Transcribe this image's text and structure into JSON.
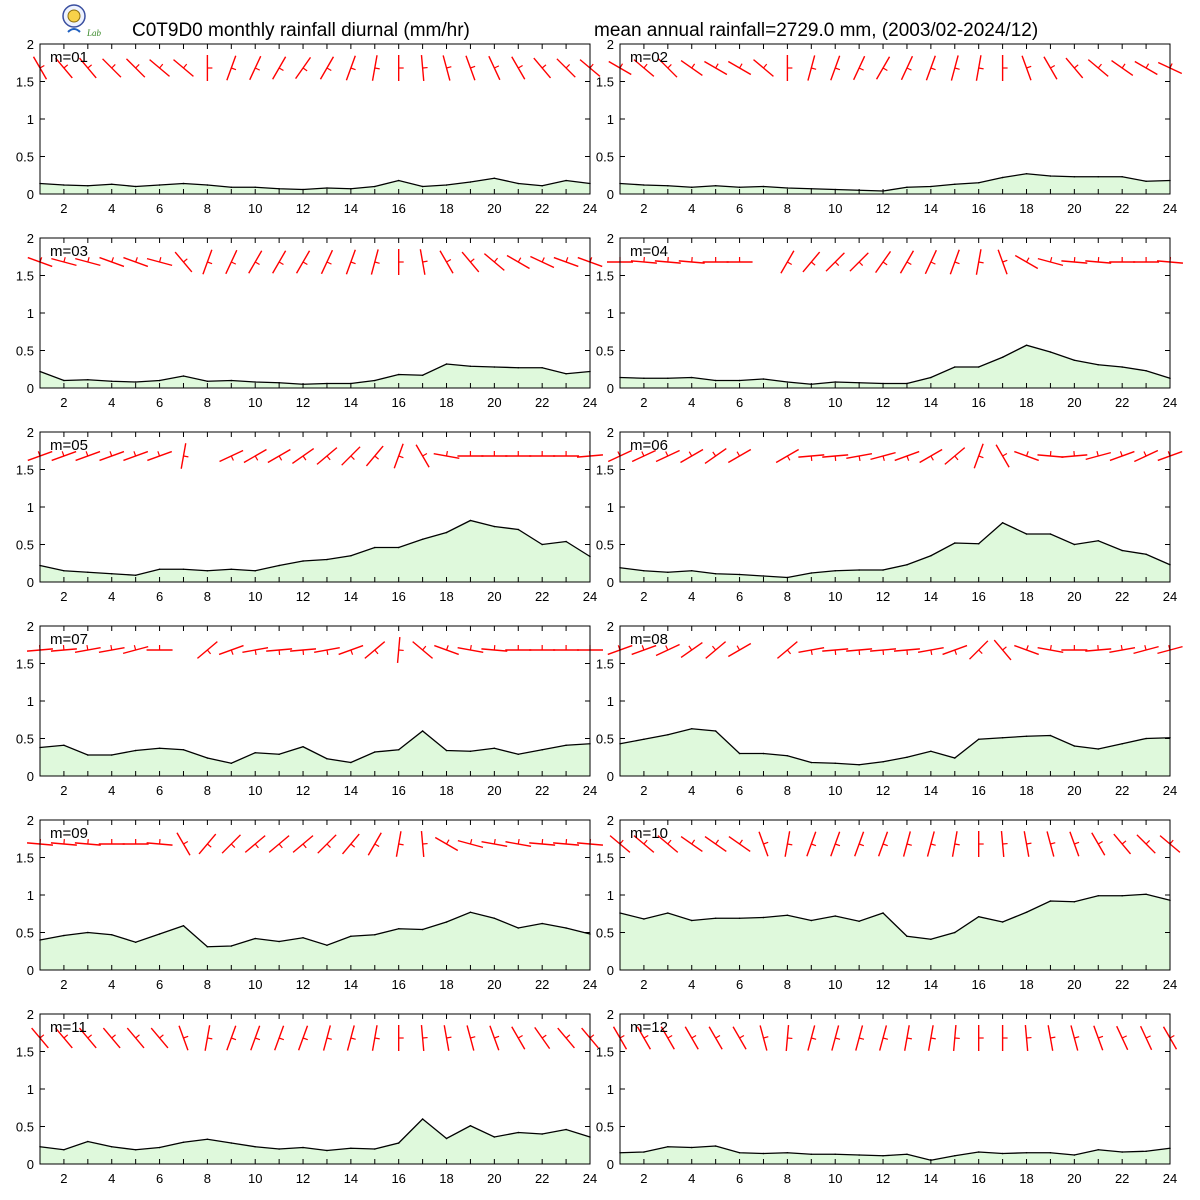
{
  "header": {
    "title_left": "C0T9D0 monthly rainfall diurnal (mm/hr)",
    "title_right": "mean annual rainfall=2729.0 mm, (2003/02-2024/12)",
    "logo_text": "Lab"
  },
  "colors": {
    "fill": "#dff9dc",
    "line": "#000000",
    "wind": "#ff0000",
    "frame": "#000000"
  },
  "chart_data": [
    {
      "type": "area",
      "label": "m=01",
      "x": [
        1,
        2,
        3,
        4,
        5,
        6,
        7,
        8,
        9,
        10,
        11,
        12,
        13,
        14,
        15,
        16,
        17,
        18,
        19,
        20,
        21,
        22,
        23,
        24
      ],
      "values": [
        0.14,
        0.12,
        0.11,
        0.13,
        0.1,
        0.12,
        0.14,
        0.12,
        0.09,
        0.09,
        0.07,
        0.06,
        0.08,
        0.07,
        0.1,
        0.18,
        0.1,
        0.12,
        0.16,
        0.21,
        0.14,
        0.11,
        0.18,
        0.14
      ],
      "wind_dir_deg": [
        330,
        320,
        320,
        315,
        315,
        310,
        310,
        0,
        20,
        25,
        30,
        35,
        30,
        20,
        10,
        0,
        355,
        345,
        340,
        335,
        330,
        320,
        315,
        310
      ],
      "xlim": [
        1,
        24
      ],
      "ylim": [
        0,
        2
      ],
      "xticks": [
        2,
        4,
        6,
        8,
        10,
        12,
        14,
        16,
        18,
        20,
        22,
        24
      ],
      "yticks": [
        "0",
        "0.5",
        "1",
        "1.5",
        "2"
      ]
    },
    {
      "type": "area",
      "label": "m=02",
      "x": [
        1,
        2,
        3,
        4,
        5,
        6,
        7,
        8,
        9,
        10,
        11,
        12,
        13,
        14,
        15,
        16,
        17,
        18,
        19,
        20,
        21,
        22,
        23,
        24
      ],
      "values": [
        0.14,
        0.12,
        0.11,
        0.09,
        0.11,
        0.09,
        0.1,
        0.08,
        0.07,
        0.06,
        0.05,
        0.04,
        0.09,
        0.1,
        0.13,
        0.15,
        0.22,
        0.27,
        0.24,
        0.23,
        0.23,
        0.23,
        0.17,
        0.18
      ],
      "wind_dir_deg": [
        300,
        310,
        315,
        305,
        300,
        300,
        310,
        0,
        15,
        20,
        25,
        30,
        25,
        20,
        15,
        10,
        0,
        340,
        330,
        320,
        310,
        305,
        300,
        295
      ],
      "xlim": [
        1,
        24
      ],
      "ylim": [
        0,
        2
      ],
      "xticks": [
        2,
        4,
        6,
        8,
        10,
        12,
        14,
        16,
        18,
        20,
        22,
        24
      ],
      "yticks": [
        "0",
        "0.5",
        "1",
        "1.5",
        "2"
      ]
    },
    {
      "type": "area",
      "label": "m=03",
      "x": [
        1,
        2,
        3,
        4,
        5,
        6,
        7,
        8,
        9,
        10,
        11,
        12,
        13,
        14,
        15,
        16,
        17,
        18,
        19,
        20,
        21,
        22,
        23,
        24
      ],
      "values": [
        0.22,
        0.1,
        0.11,
        0.09,
        0.08,
        0.1,
        0.16,
        0.09,
        0.1,
        0.08,
        0.07,
        0.05,
        0.06,
        0.06,
        0.1,
        0.18,
        0.17,
        0.32,
        0.29,
        0.28,
        0.27,
        0.27,
        0.19,
        0.22
      ],
      "wind_dir_deg": [
        290,
        285,
        285,
        290,
        290,
        285,
        320,
        20,
        25,
        30,
        30,
        30,
        25,
        20,
        15,
        0,
        350,
        330,
        320,
        310,
        300,
        295,
        290,
        290
      ],
      "xlim": [
        1,
        24
      ],
      "ylim": [
        0,
        2
      ],
      "xticks": [
        2,
        4,
        6,
        8,
        10,
        12,
        14,
        16,
        18,
        20,
        22,
        24
      ],
      "yticks": [
        "0",
        "0.5",
        "1",
        "1.5",
        "2"
      ]
    },
    {
      "type": "area",
      "label": "m=04",
      "x": [
        1,
        2,
        3,
        4,
        5,
        6,
        7,
        8,
        9,
        10,
        11,
        12,
        13,
        14,
        15,
        16,
        17,
        18,
        19,
        20,
        21,
        22,
        23,
        24
      ],
      "values": [
        0.14,
        0.13,
        0.13,
        0.14,
        0.1,
        0.1,
        0.12,
        0.08,
        0.05,
        0.08,
        0.07,
        0.06,
        0.06,
        0.14,
        0.28,
        0.28,
        0.41,
        0.57,
        0.48,
        0.37,
        0.31,
        0.28,
        0.23,
        0.13
      ],
      "wind_dir_deg": [
        270,
        275,
        275,
        275,
        270,
        270,
        null,
        30,
        40,
        45,
        45,
        35,
        30,
        25,
        20,
        10,
        340,
        300,
        285,
        275,
        275,
        270,
        270,
        275
      ],
      "xlim": [
        1,
        24
      ],
      "ylim": [
        0,
        2
      ],
      "xticks": [
        2,
        4,
        6,
        8,
        10,
        12,
        14,
        16,
        18,
        20,
        22,
        24
      ],
      "yticks": [
        "0",
        "0.5",
        "1",
        "1.5",
        "2"
      ]
    },
    {
      "type": "area",
      "label": "m=05",
      "x": [
        1,
        2,
        3,
        4,
        5,
        6,
        7,
        8,
        9,
        10,
        11,
        12,
        13,
        14,
        15,
        16,
        17,
        18,
        19,
        20,
        21,
        22,
        23,
        24
      ],
      "values": [
        0.22,
        0.15,
        0.13,
        0.11,
        0.09,
        0.17,
        0.17,
        0.15,
        0.17,
        0.15,
        0.22,
        0.28,
        0.3,
        0.35,
        0.46,
        0.46,
        0.57,
        0.66,
        0.82,
        0.74,
        0.7,
        0.5,
        0.54,
        0.34
      ],
      "wind_dir_deg": [
        250,
        250,
        250,
        250,
        250,
        250,
        10,
        null,
        65,
        60,
        60,
        55,
        50,
        45,
        40,
        20,
        330,
        280,
        270,
        270,
        270,
        270,
        270,
        265
      ],
      "xlim": [
        1,
        24
      ],
      "ylim": [
        0,
        2
      ],
      "xticks": [
        2,
        4,
        6,
        8,
        10,
        12,
        14,
        16,
        18,
        20,
        22,
        24
      ],
      "yticks": [
        "0",
        "0.5",
        "1",
        "1.5",
        "2"
      ]
    },
    {
      "type": "area",
      "label": "m=06",
      "x": [
        1,
        2,
        3,
        4,
        5,
        6,
        7,
        8,
        9,
        10,
        11,
        12,
        13,
        14,
        15,
        16,
        17,
        18,
        19,
        20,
        21,
        22,
        23,
        24
      ],
      "values": [
        0.19,
        0.15,
        0.13,
        0.15,
        0.11,
        0.1,
        0.08,
        0.06,
        0.12,
        0.15,
        0.16,
        0.16,
        0.23,
        0.35,
        0.52,
        0.51,
        0.79,
        0.64,
        0.64,
        0.5,
        0.55,
        0.42,
        0.37,
        0.23
      ],
      "wind_dir_deg": [
        245,
        245,
        245,
        240,
        235,
        240,
        null,
        60,
        85,
        85,
        80,
        75,
        70,
        60,
        50,
        20,
        330,
        290,
        275,
        265,
        255,
        250,
        245,
        250
      ],
      "xlim": [
        1,
        24
      ],
      "ylim": [
        0,
        2
      ],
      "xticks": [
        2,
        4,
        6,
        8,
        10,
        12,
        14,
        16,
        18,
        20,
        22,
        24
      ],
      "yticks": [
        "0",
        "0.5",
        "1",
        "1.5",
        "2"
      ]
    },
    {
      "type": "area",
      "label": "m=07",
      "x": [
        1,
        2,
        3,
        4,
        5,
        6,
        7,
        8,
        9,
        10,
        11,
        12,
        13,
        14,
        15,
        16,
        17,
        18,
        19,
        20,
        21,
        22,
        23,
        24
      ],
      "values": [
        0.38,
        0.41,
        0.28,
        0.28,
        0.34,
        0.37,
        0.35,
        0.24,
        0.17,
        0.31,
        0.29,
        0.39,
        0.23,
        0.18,
        0.32,
        0.35,
        0.6,
        0.34,
        0.33,
        0.37,
        0.29,
        0.35,
        0.41,
        0.43
      ],
      "wind_dir_deg": [
        265,
        265,
        260,
        260,
        255,
        270,
        null,
        50,
        70,
        80,
        85,
        85,
        80,
        70,
        50,
        5,
        310,
        290,
        280,
        275,
        270,
        270,
        270,
        270
      ],
      "xlim": [
        1,
        24
      ],
      "ylim": [
        0,
        2
      ],
      "xticks": [
        2,
        4,
        6,
        8,
        10,
        12,
        14,
        16,
        18,
        20,
        22,
        24
      ],
      "yticks": [
        "0",
        "0.5",
        "1",
        "1.5",
        "2"
      ]
    },
    {
      "type": "area",
      "label": "m=08",
      "x": [
        1,
        2,
        3,
        4,
        5,
        6,
        7,
        8,
        9,
        10,
        11,
        12,
        13,
        14,
        15,
        16,
        17,
        18,
        19,
        20,
        21,
        22,
        23,
        24
      ],
      "values": [
        0.43,
        0.49,
        0.55,
        0.63,
        0.6,
        0.3,
        0.3,
        0.27,
        0.18,
        0.17,
        0.15,
        0.19,
        0.25,
        0.33,
        0.24,
        0.49,
        0.51,
        0.53,
        0.54,
        0.4,
        0.36,
        0.43,
        0.5,
        0.51
      ],
      "wind_dir_deg": [
        250,
        250,
        245,
        235,
        230,
        240,
        null,
        50,
        80,
        85,
        85,
        85,
        85,
        80,
        70,
        45,
        320,
        290,
        280,
        270,
        265,
        260,
        255,
        255
      ],
      "xlim": [
        1,
        24
      ],
      "ylim": [
        0,
        2
      ],
      "xticks": [
        2,
        4,
        6,
        8,
        10,
        12,
        14,
        16,
        18,
        20,
        22,
        24
      ],
      "yticks": [
        "0",
        "0.5",
        "1",
        "1.5",
        "2"
      ]
    },
    {
      "type": "area",
      "label": "m=09",
      "x": [
        1,
        2,
        3,
        4,
        5,
        6,
        7,
        8,
        9,
        10,
        11,
        12,
        13,
        14,
        15,
        16,
        17,
        18,
        19,
        20,
        21,
        22,
        23,
        24
      ],
      "values": [
        0.4,
        0.46,
        0.5,
        0.47,
        0.37,
        0.48,
        0.59,
        0.31,
        0.32,
        0.42,
        0.38,
        0.43,
        0.33,
        0.45,
        0.47,
        0.55,
        0.54,
        0.64,
        0.77,
        0.69,
        0.56,
        0.62,
        0.56,
        0.48
      ],
      "wind_dir_deg": [
        275,
        275,
        275,
        270,
        270,
        275,
        330,
        40,
        45,
        50,
        50,
        50,
        45,
        40,
        30,
        10,
        355,
        300,
        285,
        280,
        280,
        275,
        275,
        275
      ],
      "xlim": [
        1,
        24
      ],
      "ylim": [
        0,
        2
      ],
      "xticks": [
        2,
        4,
        6,
        8,
        10,
        12,
        14,
        16,
        18,
        20,
        22,
        24
      ],
      "yticks": [
        "0",
        "0.5",
        "1",
        "1.5",
        "2"
      ]
    },
    {
      "type": "area",
      "label": "m=10",
      "x": [
        1,
        2,
        3,
        4,
        5,
        6,
        7,
        8,
        9,
        10,
        11,
        12,
        13,
        14,
        15,
        16,
        17,
        18,
        19,
        20,
        21,
        22,
        23,
        24
      ],
      "values": [
        0.76,
        0.68,
        0.76,
        0.66,
        0.69,
        0.69,
        0.7,
        0.73,
        0.66,
        0.72,
        0.65,
        0.76,
        0.45,
        0.41,
        0.5,
        0.71,
        0.64,
        0.77,
        0.92,
        0.91,
        0.99,
        0.99,
        1.01,
        0.93
      ],
      "wind_dir_deg": [
        310,
        310,
        310,
        305,
        305,
        305,
        340,
        10,
        20,
        20,
        20,
        20,
        15,
        15,
        10,
        0,
        355,
        350,
        345,
        340,
        330,
        320,
        315,
        310
      ],
      "xlim": [
        1,
        24
      ],
      "ylim": [
        0,
        2
      ],
      "xticks": [
        2,
        4,
        6,
        8,
        10,
        12,
        14,
        16,
        18,
        20,
        22,
        24
      ],
      "yticks": [
        "0",
        "0.5",
        "1",
        "1.5",
        "2"
      ]
    },
    {
      "type": "area",
      "label": "m=11",
      "x": [
        1,
        2,
        3,
        4,
        5,
        6,
        7,
        8,
        9,
        10,
        11,
        12,
        13,
        14,
        15,
        16,
        17,
        18,
        19,
        20,
        21,
        22,
        23,
        24
      ],
      "values": [
        0.23,
        0.19,
        0.3,
        0.23,
        0.19,
        0.22,
        0.29,
        0.33,
        0.28,
        0.23,
        0.2,
        0.22,
        0.18,
        0.21,
        0.2,
        0.28,
        0.6,
        0.34,
        0.51,
        0.36,
        0.42,
        0.4,
        0.46,
        0.36
      ],
      "wind_dir_deg": [
        320,
        320,
        320,
        320,
        320,
        320,
        340,
        10,
        20,
        20,
        20,
        20,
        15,
        15,
        10,
        0,
        355,
        350,
        345,
        340,
        330,
        325,
        320,
        320
      ],
      "xlim": [
        1,
        24
      ],
      "ylim": [
        0,
        2
      ],
      "xticks": [
        2,
        4,
        6,
        8,
        10,
        12,
        14,
        16,
        18,
        20,
        22,
        24
      ],
      "yticks": [
        "0",
        "0.5",
        "1",
        "1.5",
        "2"
      ]
    },
    {
      "type": "area",
      "label": "m=12",
      "x": [
        1,
        2,
        3,
        4,
        5,
        6,
        7,
        8,
        9,
        10,
        11,
        12,
        13,
        14,
        15,
        16,
        17,
        18,
        19,
        20,
        21,
        22,
        23,
        24
      ],
      "values": [
        0.15,
        0.16,
        0.23,
        0.22,
        0.24,
        0.15,
        0.14,
        0.15,
        0.13,
        0.13,
        0.12,
        0.11,
        0.13,
        0.05,
        0.11,
        0.16,
        0.14,
        0.15,
        0.15,
        0.12,
        0.19,
        0.16,
        0.17,
        0.21
      ],
      "wind_dir_deg": [
        330,
        330,
        330,
        330,
        330,
        330,
        345,
        5,
        15,
        15,
        15,
        15,
        10,
        10,
        5,
        0,
        0,
        355,
        350,
        345,
        340,
        335,
        335,
        330
      ],
      "xlim": [
        1,
        24
      ],
      "ylim": [
        0,
        2
      ],
      "xticks": [
        2,
        4,
        6,
        8,
        10,
        12,
        14,
        16,
        18,
        20,
        22,
        24
      ],
      "yticks": [
        "0",
        "0.5",
        "1",
        "1.5",
        "2"
      ]
    }
  ]
}
